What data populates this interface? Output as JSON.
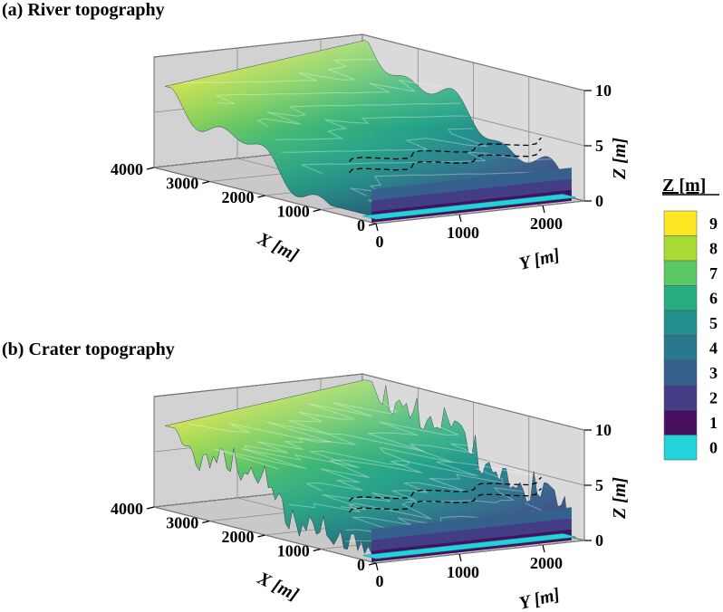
{
  "chart_data": [
    {
      "type": "surface3d",
      "title": "(a) River topography",
      "xlabel": "X [m]",
      "ylabel": "Y [m]",
      "zlabel": "Z [m]",
      "xlim": [
        0,
        4000
      ],
      "ylim": [
        0,
        2500
      ],
      "zlim": [
        0,
        10
      ],
      "x_ticks": [
        0,
        1000,
        2000,
        3000,
        4000
      ],
      "y_ticks": [
        0,
        1000,
        2000
      ],
      "z_ticks": [
        0,
        5,
        10
      ],
      "x_tick_labels": [
        "0",
        "1000",
        "2000",
        "3000",
        "4000"
      ],
      "y_tick_labels": [
        "0",
        "1000",
        "2000"
      ],
      "z_tick_labels": [
        "0",
        "5",
        "10"
      ],
      "z_range_max": 9.5,
      "roughness": "smooth",
      "contour_lines": "dashed",
      "grid": true
    },
    {
      "type": "surface3d",
      "title": "(b) Crater topography",
      "xlabel": "X [m]",
      "ylabel": "Y [m]",
      "zlabel": "Z [m]",
      "xlim": [
        0,
        4000
      ],
      "ylim": [
        0,
        2500
      ],
      "zlim": [
        0,
        10
      ],
      "x_ticks": [
        0,
        1000,
        2000,
        3000,
        4000
      ],
      "y_ticks": [
        0,
        1000,
        2000
      ],
      "z_ticks": [
        0,
        5,
        10
      ],
      "x_tick_labels": [
        "0",
        "1000",
        "2000",
        "3000",
        "4000"
      ],
      "y_tick_labels": [
        "0",
        "1000",
        "2000"
      ],
      "z_tick_labels": [
        "0",
        "5",
        "10"
      ],
      "z_range_max": 9.5,
      "roughness": "spiky",
      "contour_lines": "dashed",
      "grid": true
    }
  ],
  "colorbar": {
    "title": "Z [m]",
    "levels": [
      "0",
      "1",
      "2",
      "3",
      "4",
      "5",
      "6",
      "7",
      "8",
      "9"
    ],
    "colors": [
      "#22d3da",
      "#46105e",
      "#433d86",
      "#355f8d",
      "#2a788e",
      "#21908d",
      "#27ad81",
      "#5cc863",
      "#a8db34",
      "#fde725"
    ]
  }
}
